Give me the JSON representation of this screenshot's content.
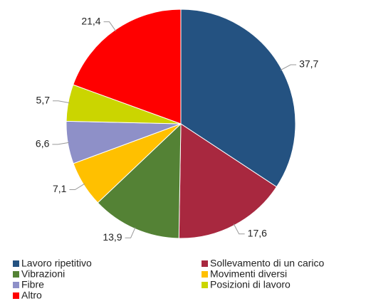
{
  "chart_data": {
    "type": "pie",
    "categories": [
      "Lavoro ripetitivo",
      "Sollevamento di un carico",
      "Vibrazioni",
      "Movimenti diversi",
      "Fibre",
      "Posizioni di lavoro",
      "Altro"
    ],
    "values": [
      37.7,
      17.6,
      13.9,
      7.1,
      6.6,
      5.7,
      21.4
    ],
    "value_labels": [
      "37,7",
      "17,6",
      "13,9",
      "7,1",
      "6,6",
      "5,7",
      "21,4"
    ],
    "colors": [
      "#245281",
      "#a8283f",
      "#548235",
      "#ffc000",
      "#8e90c8",
      "#cbd500",
      "#ff0000"
    ],
    "legend": "bottom"
  }
}
